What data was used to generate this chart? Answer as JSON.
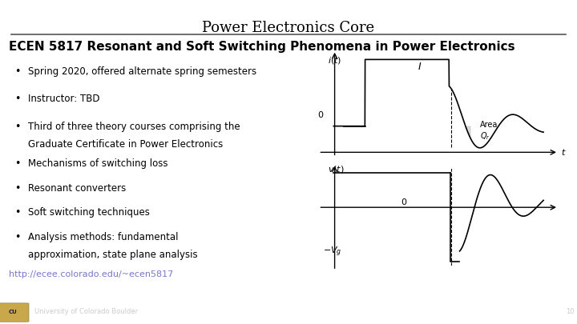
{
  "title": "Power Electronics Core",
  "subtitle": "ECEN 5817 Resonant and Soft Switching Phenomena in Power Electronics",
  "bullet_group1": [
    "Spring 2020, offered alternate spring semesters",
    "Instructor: TBD",
    "Third of three theory courses comprising the\nGraduate Certificate in Power Electronics"
  ],
  "bullet_group2": [
    "Mechanisms of switching loss",
    "Resonant converters",
    "Soft switching techniques",
    "Analysis methods: fundamental\napproximation, state plane analysis"
  ],
  "link": "http://ecee.colorado.edu/~ecen5817",
  "footer_text": "University of Colorado Boulder",
  "page_number": "10",
  "bg_color": "#ffffff",
  "footer_bg": "#0d2235",
  "footer_text_color": "#c8b87a",
  "title_color": "#000000",
  "subtitle_color": "#000000",
  "bullet_color": "#000000",
  "link_color": "#7777cc",
  "footer_font_size": 6,
  "title_font_size": 13,
  "subtitle_font_size": 11
}
